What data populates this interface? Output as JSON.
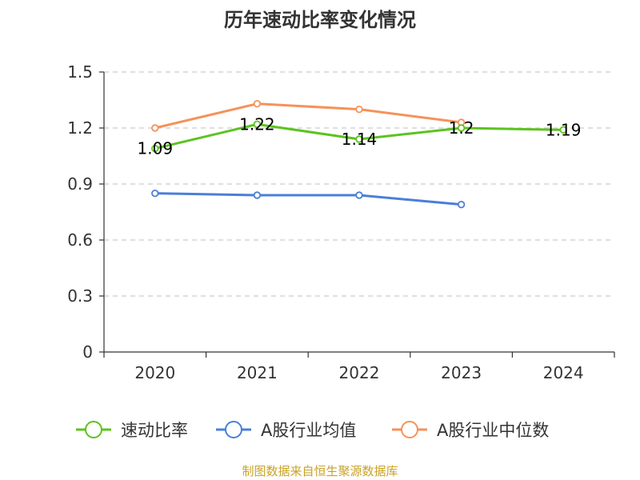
{
  "chart_data": {
    "type": "line",
    "title": "历年速动比率变化情况",
    "categories": [
      "2020",
      "2021",
      "2022",
      "2023",
      "2024"
    ],
    "ylim": [
      0,
      1.5
    ],
    "yticks": [
      0,
      0.3,
      0.6,
      0.9,
      1.2,
      1.5
    ],
    "ytick_labels": [
      "0",
      "0.3",
      "0.6",
      "0.9",
      "1.2",
      "1.5"
    ],
    "xlabel": "",
    "ylabel": "",
    "grid": "horizontal dashed",
    "legend_position": "bottom",
    "series": [
      {
        "name": "速动比率",
        "color": "#5cc31f",
        "values": [
          1.09,
          1.22,
          1.14,
          1.2,
          1.19
        ],
        "labels": [
          "1.09",
          "1.22",
          "1.14",
          "1.2",
          "1.19"
        ]
      },
      {
        "name": "A股行业均值",
        "color": "#4a7fd9",
        "values": [
          0.85,
          0.84,
          0.84,
          0.79,
          null
        ]
      },
      {
        "name": "A股行业中位数",
        "color": "#f5925a",
        "values": [
          1.2,
          1.33,
          1.3,
          1.23,
          null
        ]
      }
    ]
  },
  "source": {
    "text": "制图数据来自恒生聚源数据库",
    "color": "#c9a227"
  }
}
